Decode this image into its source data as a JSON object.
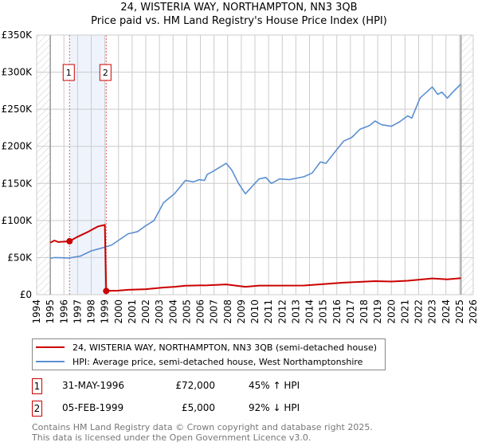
{
  "title_line1": "24, WISTERIA WAY, NORTHAMPTON, NN3 3QB",
  "title_line2": "Price paid vs. HM Land Registry's House Price Index (HPI)",
  "legend": [
    {
      "label": "24, WISTERIA WAY, NORTHAMPTON, NN3 3QB (semi-detached house)",
      "color": "#cc0000"
    },
    {
      "label": "HPI: Average price, semi-detached house, West Northamptonshire",
      "color": "#5b8fd1"
    }
  ],
  "transactions": [
    {
      "num": "1",
      "date": "31-MAY-1996",
      "price": "£72,000",
      "hpi": "45% ↑ HPI"
    },
    {
      "num": "2",
      "date": "05-FEB-1999",
      "price": "£5,000",
      "hpi": "92% ↓ HPI"
    }
  ],
  "footer_line1": "Contains HM Land Registry data © Crown copyright and database right 2025.",
  "footer_line2": "This data is licensed under the Open Government Licence v3.0.",
  "chart_data": {
    "type": "line",
    "xlim": [
      1994,
      2026
    ],
    "ylim": [
      0,
      350000
    ],
    "x_ticks": [
      "1994",
      "1995",
      "1996",
      "1997",
      "1998",
      "1999",
      "2000",
      "2001",
      "2002",
      "2003",
      "2004",
      "2005",
      "2006",
      "2007",
      "2008",
      "2009",
      "2010",
      "2011",
      "2012",
      "2013",
      "2014",
      "2015",
      "2016",
      "2017",
      "2018",
      "2019",
      "2020",
      "2021",
      "2022",
      "2023",
      "2024",
      "2025",
      "2026"
    ],
    "y_ticks": [
      {
        "v": 0,
        "label": "£0"
      },
      {
        "v": 50000,
        "label": "£50K"
      },
      {
        "v": 100000,
        "label": "£100K"
      },
      {
        "v": 150000,
        "label": "£150K"
      },
      {
        "v": 200000,
        "label": "£200K"
      },
      {
        "v": 250000,
        "label": "£250K"
      },
      {
        "v": 300000,
        "label": "£300K"
      },
      {
        "v": 350000,
        "label": "£350K"
      }
    ],
    "data_range": [
      1995,
      2025.1
    ],
    "sales": [
      {
        "label": "1",
        "x": 1996.41,
        "y": 72000
      },
      {
        "label": "2",
        "x": 1999.1,
        "y": 5000
      }
    ],
    "series": [
      {
        "name": "hpi",
        "color": "#5b8fd1",
        "points": [
          [
            1995,
            49000
          ],
          [
            1995.3,
            50000
          ],
          [
            1996.4,
            49500
          ],
          [
            1997.2,
            52000
          ],
          [
            1998,
            59000
          ],
          [
            1999,
            64000
          ],
          [
            1999.5,
            67000
          ],
          [
            2000.7,
            82000
          ],
          [
            2001.4,
            85000
          ],
          [
            2002,
            93000
          ],
          [
            2002.6,
            100000
          ],
          [
            2003.3,
            124000
          ],
          [
            2004.1,
            136000
          ],
          [
            2004.9,
            154000
          ],
          [
            2005.5,
            152000
          ],
          [
            2005.9,
            155000
          ],
          [
            2006.3,
            154000
          ],
          [
            2006.5,
            162000
          ],
          [
            2006.9,
            166000
          ],
          [
            2007.9,
            177000
          ],
          [
            2008.3,
            168000
          ],
          [
            2008.8,
            150000
          ],
          [
            2009.3,
            136000
          ],
          [
            2010.3,
            156000
          ],
          [
            2010.8,
            158000
          ],
          [
            2011.2,
            150000
          ],
          [
            2011.8,
            156000
          ],
          [
            2012.5,
            155000
          ],
          [
            2013.6,
            159000
          ],
          [
            2014.2,
            164000
          ],
          [
            2014.8,
            179000
          ],
          [
            2015.2,
            177000
          ],
          [
            2015.8,
            191000
          ],
          [
            2016.5,
            207000
          ],
          [
            2017.1,
            212000
          ],
          [
            2017.7,
            223000
          ],
          [
            2018.4,
            228000
          ],
          [
            2018.8,
            234000
          ],
          [
            2019.3,
            229000
          ],
          [
            2020,
            227000
          ],
          [
            2020.6,
            233000
          ],
          [
            2021.2,
            241000
          ],
          [
            2021.5,
            238000
          ],
          [
            2022.1,
            265000
          ],
          [
            2023,
            280000
          ],
          [
            2023.4,
            270000
          ],
          [
            2023.7,
            273000
          ],
          [
            2024.1,
            265000
          ],
          [
            2024.6,
            275000
          ],
          [
            2025.1,
            284000
          ]
        ]
      },
      {
        "name": "property",
        "color": "#cc0000",
        "points": [
          [
            1995,
            70000
          ],
          [
            1995.3,
            73000
          ],
          [
            1995.6,
            71000
          ],
          [
            1996.41,
            72000
          ],
          [
            1997,
            78000
          ],
          [
            1997.8,
            85000
          ],
          [
            1998.5,
            92000
          ],
          [
            1999,
            94000
          ],
          [
            1999.1,
            5000
          ],
          [
            2000,
            5500
          ],
          [
            2000.7,
            6500
          ],
          [
            2002,
            7400
          ],
          [
            2003.3,
            9700
          ],
          [
            2004.1,
            10600
          ],
          [
            2004.9,
            12000
          ],
          [
            2006.5,
            12700
          ],
          [
            2007.9,
            13800
          ],
          [
            2009.3,
            10600
          ],
          [
            2010.3,
            12200
          ],
          [
            2013.6,
            12400
          ],
          [
            2014.8,
            14000
          ],
          [
            2016.5,
            16200
          ],
          [
            2018.8,
            18300
          ],
          [
            2020,
            17700
          ],
          [
            2021.2,
            18800
          ],
          [
            2023,
            21900
          ],
          [
            2024.1,
            20700
          ],
          [
            2025.1,
            22200
          ]
        ]
      }
    ]
  }
}
